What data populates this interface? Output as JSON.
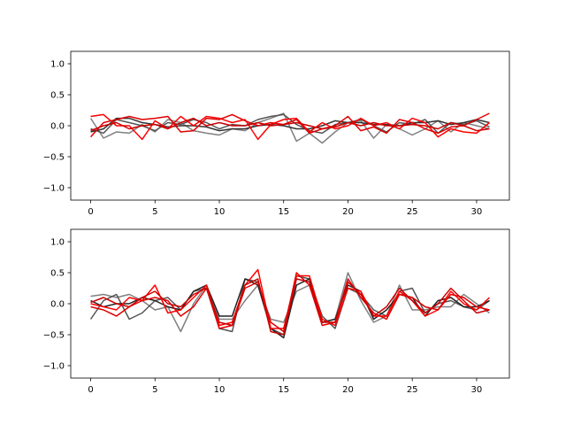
{
  "chart_data": [
    {
      "type": "line",
      "title": "",
      "xlabel": "",
      "ylabel": "",
      "xlim": [
        -1.55,
        32.55
      ],
      "ylim": [
        -1.2,
        1.2
      ],
      "xticks": [
        0,
        5,
        10,
        15,
        20,
        25,
        30
      ],
      "yticks": [
        -1.0,
        -0.5,
        0.0,
        0.5,
        1.0
      ],
      "xtick_labels": [
        "0",
        "5",
        "10",
        "15",
        "20",
        "25",
        "30"
      ],
      "ytick_labels": [
        "−1.0",
        "−0.5",
        "0.0",
        "0.5",
        "1.0"
      ],
      "grid": false,
      "legend": "none",
      "x": [
        0,
        1,
        2,
        3,
        4,
        5,
        6,
        7,
        8,
        9,
        10,
        11,
        12,
        13,
        14,
        15,
        16,
        17,
        18,
        19,
        20,
        21,
        22,
        23,
        24,
        25,
        26,
        27,
        28,
        29,
        30,
        31
      ],
      "series": [
        {
          "color": "#808080",
          "values": [
            0.12,
            -0.2,
            -0.1,
            -0.12,
            0.02,
            -0.1,
            0.1,
            0.05,
            -0.08,
            -0.12,
            -0.15,
            -0.05,
            -0.08,
            0.05,
            0.12,
            0.2,
            -0.25,
            -0.12,
            -0.28,
            -0.1,
            0.05,
            0.08,
            -0.2,
            0.02,
            -0.05,
            -0.15,
            -0.05,
            0.08,
            -0.1,
            0.05,
            0.0,
            -0.05
          ]
        },
        {
          "color": "#555555",
          "values": [
            -0.05,
            -0.12,
            0.1,
            0.05,
            0.0,
            -0.08,
            0.05,
            0.02,
            0.1,
            0.05,
            -0.05,
            0.02,
            0.0,
            0.1,
            0.15,
            0.18,
            0.02,
            -0.08,
            -0.12,
            0.02,
            0.05,
            0.1,
            0.0,
            -0.1,
            0.05,
            0.02,
            0.1,
            -0.12,
            0.05,
            0.02,
            0.08,
            -0.02
          ]
        },
        {
          "color": "#333333",
          "values": [
            -0.1,
            -0.05,
            0.12,
            0.12,
            0.05,
            0.02,
            -0.02,
            0.0,
            0.0,
            -0.02,
            -0.08,
            -0.05,
            -0.05,
            0.0,
            0.02,
            0.0,
            -0.05,
            -0.05,
            0.0,
            0.08,
            0.05,
            0.05,
            0.02,
            0.02,
            0.0,
            0.05,
            0.05,
            0.08,
            0.02,
            0.05,
            0.1,
            0.05
          ]
        },
        {
          "color": "#ff0000",
          "values": [
            0.15,
            0.18,
            0.0,
            0.0,
            -0.22,
            0.08,
            -0.05,
            0.15,
            0.0,
            0.15,
            0.12,
            0.05,
            0.1,
            -0.22,
            0.02,
            0.1,
            0.12,
            -0.1,
            0.05,
            -0.05,
            0.0,
            0.12,
            0.0,
            0.05,
            -0.05,
            0.12,
            0.05,
            -0.18,
            -0.05,
            -0.1,
            -0.12,
            0.05
          ]
        },
        {
          "color": "#e00000",
          "values": [
            -0.18,
            0.05,
            0.1,
            0.15,
            0.1,
            0.12,
            0.15,
            -0.1,
            -0.08,
            0.12,
            0.1,
            0.18,
            0.08,
            0.0,
            0.05,
            0.02,
            0.1,
            -0.12,
            -0.05,
            0.0,
            0.15,
            -0.08,
            -0.02,
            -0.12,
            0.1,
            0.05,
            -0.05,
            -0.12,
            -0.02,
            0.0,
            0.1,
            0.2
          ]
        },
        {
          "color": "#cc0000",
          "values": [
            -0.08,
            0.0,
            0.05,
            -0.05,
            0.0,
            0.02,
            -0.05,
            0.05,
            0.12,
            0.0,
            0.05,
            0.0,
            0.0,
            0.05,
            0.0,
            0.02,
            0.05,
            0.0,
            -0.05,
            -0.02,
            0.05,
            0.0,
            0.05,
            0.0,
            0.0,
            0.02,
            0.0,
            -0.05,
            0.05,
            0.0,
            -0.08,
            -0.05
          ]
        }
      ]
    },
    {
      "type": "line",
      "title": "",
      "xlabel": "",
      "ylabel": "",
      "xlim": [
        -1.55,
        32.55
      ],
      "ylim": [
        -1.2,
        1.2
      ],
      "xticks": [
        0,
        5,
        10,
        15,
        20,
        25,
        30
      ],
      "yticks": [
        -1.0,
        -0.5,
        0.0,
        0.5,
        1.0
      ],
      "xtick_labels": [
        "0",
        "5",
        "10",
        "15",
        "20",
        "25",
        "30"
      ],
      "ytick_labels": [
        "−1.0",
        "−0.5",
        "0.0",
        "0.5",
        "1.0"
      ],
      "grid": false,
      "legend": "none",
      "x": [
        0,
        1,
        2,
        3,
        4,
        5,
        6,
        7,
        8,
        9,
        10,
        11,
        12,
        13,
        14,
        15,
        16,
        17,
        18,
        19,
        20,
        21,
        22,
        23,
        24,
        25,
        26,
        27,
        28,
        29,
        30,
        31
      ],
      "series": [
        {
          "color": "#808080",
          "values": [
            0.12,
            0.15,
            0.1,
            0.15,
            0.05,
            -0.1,
            -0.05,
            -0.45,
            0.0,
            0.3,
            -0.25,
            -0.25,
            0.05,
            0.3,
            -0.25,
            -0.3,
            0.2,
            0.3,
            -0.3,
            -0.25,
            0.5,
            0.05,
            -0.3,
            -0.2,
            0.3,
            -0.1,
            -0.1,
            -0.05,
            -0.05,
            0.15,
            0.0,
            -0.15
          ]
        },
        {
          "color": "#555555",
          "values": [
            -0.25,
            0.05,
            0.15,
            -0.25,
            -0.15,
            0.05,
            0.1,
            -0.1,
            0.2,
            0.25,
            -0.4,
            -0.45,
            0.4,
            0.35,
            -0.4,
            -0.5,
            0.45,
            0.4,
            -0.2,
            -0.4,
            0.25,
            0.15,
            -0.1,
            -0.2,
            0.2,
            0.25,
            -0.15,
            0.0,
            0.05,
            -0.05,
            -0.1,
            0.05
          ]
        },
        {
          "color": "#222222",
          "values": [
            0.05,
            -0.05,
            0.0,
            0.0,
            0.1,
            0.05,
            -0.05,
            -0.1,
            0.2,
            0.3,
            -0.2,
            -0.2,
            0.4,
            0.3,
            -0.4,
            -0.55,
            0.3,
            0.4,
            -0.3,
            -0.25,
            0.3,
            0.2,
            -0.25,
            -0.1,
            0.15,
            0.1,
            -0.2,
            0.05,
            0.1,
            -0.05,
            -0.05,
            0.05
          ]
        },
        {
          "color": "#ff0000",
          "values": [
            0.0,
            -0.05,
            -0.1,
            0.1,
            0.05,
            0.3,
            -0.15,
            -0.1,
            0.1,
            0.3,
            -0.35,
            -0.3,
            0.3,
            0.55,
            -0.4,
            -0.4,
            0.45,
            0.45,
            -0.25,
            -0.35,
            0.25,
            0.2,
            -0.2,
            -0.2,
            0.2,
            0.05,
            -0.2,
            -0.1,
            0.2,
            0.0,
            -0.1,
            0.1
          ]
        },
        {
          "color": "#e00000",
          "values": [
            -0.05,
            -0.1,
            -0.2,
            -0.05,
            0.05,
            0.1,
            0.05,
            -0.2,
            -0.05,
            0.25,
            -0.4,
            -0.35,
            0.25,
            0.35,
            -0.3,
            -0.45,
            0.5,
            0.3,
            -0.35,
            -0.3,
            0.4,
            0.1,
            -0.15,
            -0.25,
            0.15,
            0.1,
            -0.05,
            -0.1,
            0.15,
            0.1,
            -0.05,
            -0.1
          ]
        },
        {
          "color": "#cc0000",
          "values": [
            0.02,
            0.1,
            0.0,
            -0.05,
            0.1,
            0.2,
            0.0,
            -0.05,
            0.15,
            0.25,
            -0.3,
            -0.35,
            0.3,
            0.4,
            -0.45,
            -0.5,
            0.4,
            0.35,
            -0.3,
            -0.3,
            0.35,
            0.15,
            -0.2,
            -0.05,
            0.25,
            0.05,
            -0.15,
            0.0,
            0.25,
            0.05,
            -0.15,
            -0.1
          ]
        }
      ]
    }
  ]
}
